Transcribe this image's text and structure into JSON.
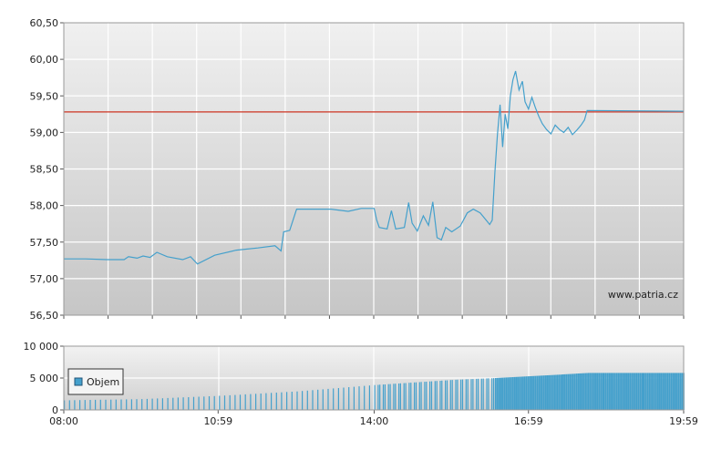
{
  "chart_data": [
    {
      "type": "line",
      "panel": "price",
      "x_unit": "time",
      "x_ticks": [
        "08:00",
        "10:59",
        "14:00",
        "16:59",
        "19:59"
      ],
      "ylim": [
        56.5,
        60.5
      ],
      "yticks": [
        "56,50",
        "57,00",
        "57,50",
        "58,00",
        "58,50",
        "59,00",
        "59,50",
        "60,00",
        "60,50"
      ],
      "grid": true,
      "watermark": "www.patria.cz",
      "reference_line": {
        "value": 59.28,
        "color": "#cc3322"
      },
      "series": [
        {
          "color": "#44a0cc",
          "points": [
            [
              "08:00",
              57.27
            ],
            [
              "08:25",
              57.27
            ],
            [
              "08:50",
              57.26
            ],
            [
              "09:10",
              57.26
            ],
            [
              "09:15",
              57.3
            ],
            [
              "09:25",
              57.28
            ],
            [
              "09:32",
              57.31
            ],
            [
              "09:40",
              57.29
            ],
            [
              "09:48",
              57.36
            ],
            [
              "10:00",
              57.3
            ],
            [
              "10:18",
              57.26
            ],
            [
              "10:27",
              57.3
            ],
            [
              "10:35",
              57.2
            ],
            [
              "10:55",
              57.32
            ],
            [
              "11:20",
              57.39
            ],
            [
              "11:45",
              57.42
            ],
            [
              "12:05",
              57.45
            ],
            [
              "12:12",
              57.38
            ],
            [
              "12:15",
              57.64
            ],
            [
              "12:22",
              57.66
            ],
            [
              "12:30",
              57.95
            ],
            [
              "13:10",
              57.95
            ],
            [
              "13:30",
              57.92
            ],
            [
              "13:45",
              57.96
            ],
            [
              "14:00",
              57.96
            ],
            [
              "14:03",
              57.8
            ],
            [
              "14:06",
              57.7
            ],
            [
              "14:15",
              57.68
            ],
            [
              "14:20",
              57.93
            ],
            [
              "14:25",
              57.68
            ],
            [
              "14:35",
              57.7
            ],
            [
              "14:40",
              58.04
            ],
            [
              "14:44",
              57.76
            ],
            [
              "14:50",
              57.65
            ],
            [
              "14:57",
              57.86
            ],
            [
              "15:03",
              57.73
            ],
            [
              "15:08",
              58.05
            ],
            [
              "15:13",
              57.56
            ],
            [
              "15:18",
              57.53
            ],
            [
              "15:23",
              57.7
            ],
            [
              "15:30",
              57.64
            ],
            [
              "15:40",
              57.72
            ],
            [
              "15:48",
              57.9
            ],
            [
              "15:55",
              57.95
            ],
            [
              "16:03",
              57.9
            ],
            [
              "16:10",
              57.8
            ],
            [
              "16:14",
              57.74
            ],
            [
              "16:17",
              57.8
            ],
            [
              "16:20",
              58.45
            ],
            [
              "16:23",
              58.97
            ],
            [
              "16:26",
              59.38
            ],
            [
              "16:29",
              58.8
            ],
            [
              "16:32",
              59.25
            ],
            [
              "16:35",
              59.05
            ],
            [
              "16:38",
              59.5
            ],
            [
              "16:41",
              59.72
            ],
            [
              "16:44",
              59.84
            ],
            [
              "16:48",
              59.58
            ],
            [
              "16:52",
              59.7
            ],
            [
              "16:55",
              59.42
            ],
            [
              "16:59",
              59.32
            ],
            [
              "17:03",
              59.48
            ],
            [
              "17:07",
              59.34
            ],
            [
              "17:11",
              59.22
            ],
            [
              "17:15",
              59.12
            ],
            [
              "17:20",
              59.04
            ],
            [
              "17:25",
              58.98
            ],
            [
              "17:30",
              59.1
            ],
            [
              "17:35",
              59.04
            ],
            [
              "17:40",
              59.0
            ],
            [
              "17:45",
              59.07
            ],
            [
              "17:50",
              58.97
            ],
            [
              "17:55",
              59.03
            ],
            [
              "18:00",
              59.1
            ],
            [
              "18:04",
              59.17
            ],
            [
              "18:07",
              59.3
            ],
            [
              "19:59",
              59.29
            ]
          ]
        }
      ]
    },
    {
      "type": "bar",
      "panel": "volume",
      "x_ticks": [
        "08:00",
        "10:59",
        "14:00",
        "16:59",
        "19:59"
      ],
      "ylim": [
        0,
        10000
      ],
      "yticks": [
        "0",
        "5 000",
        "10 000"
      ],
      "grid": true,
      "legend": {
        "label": "Objem",
        "position": "left",
        "color": "#44a0cc"
      },
      "cumulative_points": [
        [
          "08:00",
          1500
        ],
        [
          "09:30",
          1700
        ],
        [
          "10:59",
          2200
        ],
        [
          "12:30",
          2900
        ],
        [
          "14:00",
          3900
        ],
        [
          "15:30",
          4700
        ],
        [
          "16:20",
          5000
        ],
        [
          "17:30",
          5500
        ],
        [
          "18:07",
          5800
        ],
        [
          "19:59",
          5800
        ]
      ]
    }
  ]
}
